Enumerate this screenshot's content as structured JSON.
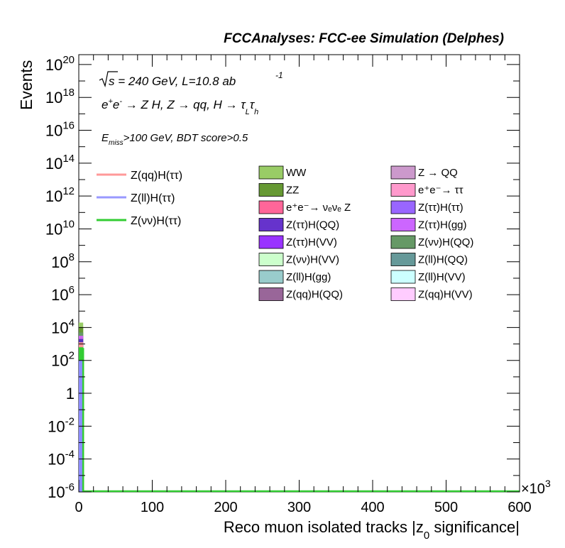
{
  "header": {
    "title": "FCCAnalyses: FCC-ee Simulation (Delphes)"
  },
  "annotations": {
    "energy_sqrt": "s",
    "energy_rest": " = 240 GeV, L=10.8 ab",
    "lumi_exp": "-1",
    "process_part1": "e",
    "process_sup1": "+",
    "process_part2": "e",
    "process_sup2": "-",
    "process_part3": " → Z H, Z  → qq, H  → τ",
    "process_sub1": "L",
    "process_part4": "τ",
    "process_sub2": "h",
    "cut_E": "E",
    "cut_sub": "miss",
    "cut_rest": ">100 GeV, BDT score>0.5"
  },
  "chart_data": {
    "type": "bar",
    "title": "FCCAnalyses: FCC-ee Simulation (Delphes)",
    "xlabel_main": "Reco muon isolated tracks |z",
    "xlabel_sub": "0",
    "xlabel_end": " significance|",
    "ylabel": "Events",
    "x_multiplier_base": "×10",
    "x_multiplier_exp": "3",
    "log_y": true,
    "xlim": [
      0,
      600
    ],
    "ylim_exp": [
      -6,
      20.6
    ],
    "x_ticks": [
      "0",
      "100",
      "200",
      "300",
      "400",
      "500",
      "600"
    ],
    "x_tick_values": [
      0,
      100,
      200,
      300,
      400,
      500,
      600
    ],
    "y_ticks": [
      {
        "exp": -6,
        "base": "10",
        "sup": "-6"
      },
      {
        "exp": -4,
        "base": "10",
        "sup": "-4"
      },
      {
        "exp": -2,
        "base": "10",
        "sup": "-2"
      },
      {
        "exp": 0,
        "base": "1",
        "sup": ""
      },
      {
        "exp": 2,
        "base": "10",
        "sup": "2"
      },
      {
        "exp": 4,
        "base": "10",
        "sup": "4"
      },
      {
        "exp": 6,
        "base": "10",
        "sup": "6"
      },
      {
        "exp": 8,
        "base": "10",
        "sup": "8"
      },
      {
        "exp": 10,
        "base": "10",
        "sup": "10"
      },
      {
        "exp": 12,
        "base": "10",
        "sup": "12"
      },
      {
        "exp": 14,
        "base": "10",
        "sup": "14"
      },
      {
        "exp": 16,
        "base": "10",
        "sup": "16"
      },
      {
        "exp": 18,
        "base": "10",
        "sup": "18"
      },
      {
        "exp": 20,
        "base": "10",
        "sup": "20"
      }
    ],
    "stack_bin": {
      "x_range": [
        0,
        6
      ],
      "layers": [
        {
          "name": "Z(νν)H(ττ)",
          "color": "#33cc33",
          "log10_top": 2.8
        },
        {
          "name": "Z(ll)H(ττ)",
          "color": "#8c8cff",
          "log10_top": 2.0
        },
        {
          "name": "Z(qq)H(ττ)",
          "color": "#ff9999",
          "log10_top": 3.1
        },
        {
          "name": "Z(ττ)H(QQ)",
          "color": "#5533bb",
          "log10_top": 3.3
        },
        {
          "name": "Z(ττ)H(gg)",
          "color": "#cc66ee",
          "log10_top": 3.5
        },
        {
          "name": "Z(νν)H(QQ)",
          "color": "#669966",
          "log10_top": 3.7
        },
        {
          "name": "ZZ",
          "color": "#669933",
          "log10_top": 4.0
        },
        {
          "name": "WW",
          "color": "#99cc66",
          "log10_top": 4.3
        }
      ],
      "nunu_line_top": 2.7
    },
    "legend_left": [
      {
        "label": "Z(qq)H(ττ)",
        "color": "#ff9999"
      },
      {
        "label": "Z(ll)H(ττ)",
        "color": "#9999ff"
      },
      {
        "label": "Z(νν)H(ττ)",
        "color": "#33cc33"
      }
    ],
    "legend_mid": [
      {
        "label": "WW",
        "color": "#99cc66"
      },
      {
        "label": "ZZ",
        "color": "#669933"
      },
      {
        "label": "e⁺e⁻→ νₑνₑ Z",
        "color": "#ff6699"
      },
      {
        "label": "Z(ττ)H(QQ)",
        "color": "#6633cc"
      },
      {
        "label": "Z(ττ)H(VV)",
        "color": "#9933ff"
      },
      {
        "label": "Z(νν)H(VV)",
        "color": "#ccffcc"
      },
      {
        "label": "Z(ll)H(gg)",
        "color": "#99cccc"
      },
      {
        "label": "Z(qq)H(QQ)",
        "color": "#996699"
      }
    ],
    "legend_right": [
      {
        "label": "Z → QQ",
        "color": "#cc99cc"
      },
      {
        "label": "e⁺e⁻→ ττ",
        "color": "#ff99cc"
      },
      {
        "label": "Z(ττ)H(ττ)",
        "color": "#9966ff"
      },
      {
        "label": "Z(ττ)H(gg)",
        "color": "#cc66ff"
      },
      {
        "label": "Z(νν)H(QQ)",
        "color": "#669966"
      },
      {
        "label": "Z(ll)H(QQ)",
        "color": "#669999"
      },
      {
        "label": "Z(ll)H(VV)",
        "color": "#ccffff"
      },
      {
        "label": "Z(qq)H(VV)",
        "color": "#ffccff"
      }
    ]
  }
}
